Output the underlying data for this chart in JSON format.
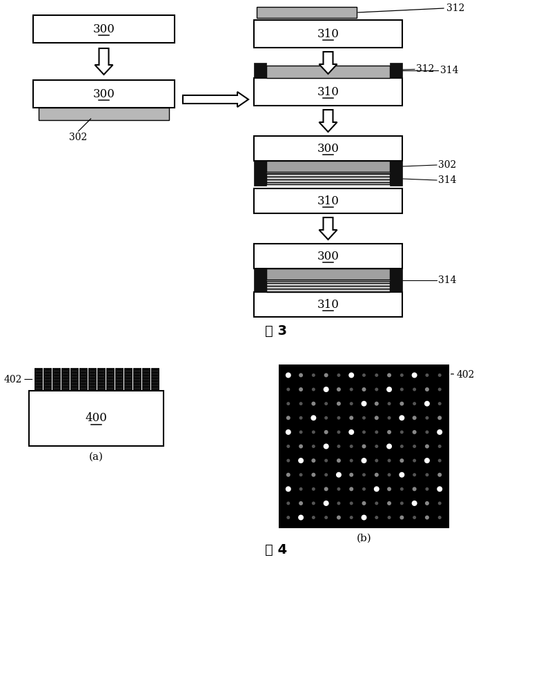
{
  "bg_color": "#ffffff",
  "fig3_label": "图 3",
  "fig4_label": "图 4",
  "fig_width": 8.0,
  "fig_height": 9.98,
  "fig_dpi": 100,
  "lw_main": 1.5,
  "lw_thin": 1.0,
  "hatch_302": "wwww",
  "hatch_314": "----",
  "col_color": "#111111",
  "plate_fc": "#ffffff",
  "hatch_302_fc": "#aaaaaa",
  "hatch_314_fc": "#cccccc"
}
